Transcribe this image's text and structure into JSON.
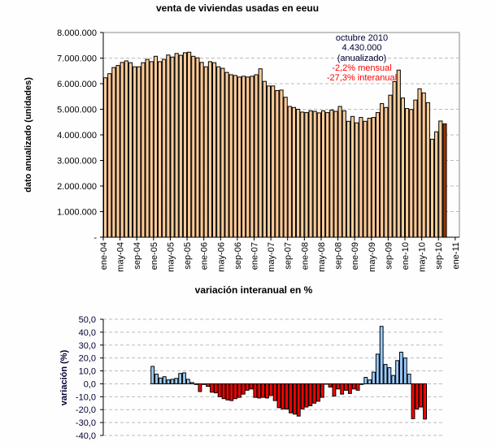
{
  "chart_data": [
    {
      "type": "bar",
      "title": "venta de viviendas usadas en eeuu",
      "ylabel": "dato anualizado (unidades)",
      "xlabel": "",
      "ylim": [
        0,
        8000000
      ],
      "yticks": [
        "-",
        "1.000.000",
        "2.000.000",
        "3.000.000",
        "4.000.000",
        "5.000.000",
        "6.000.000",
        "7.000.000",
        "8.000.000"
      ],
      "xticks": [
        "ene-04",
        "may-04",
        "sep-04",
        "ene-05",
        "may-05",
        "sep-05",
        "ene-06",
        "may-06",
        "sep-06",
        "ene-07",
        "may-07",
        "sep-07",
        "ene-08",
        "may-08",
        "sep-08",
        "ene-09",
        "may-09",
        "sep-09",
        "ene-10",
        "may-10",
        "sep-10",
        "ene-11"
      ],
      "x_start": "ene-04",
      "x_end": "oct-10",
      "grid": true,
      "bar_color": "#ffcc99",
      "highlight_color": "#993300",
      "values": [
        6230000,
        6390000,
        6630000,
        6710000,
        6830000,
        6890000,
        6820000,
        6660000,
        6660000,
        6820000,
        6950000,
        6860000,
        7070000,
        6860000,
        6950000,
        7120000,
        7040000,
        7180000,
        7110000,
        7210000,
        7230000,
        7070000,
        7010000,
        6830000,
        6660000,
        6860000,
        6820000,
        6660000,
        6600000,
        6440000,
        6350000,
        6320000,
        6260000,
        6290000,
        6260000,
        6290000,
        6350000,
        6580000,
        6090000,
        5910000,
        5910000,
        5730000,
        5750000,
        5470000,
        5110000,
        5070000,
        5000000,
        4890000,
        4870000,
        4940000,
        4920000,
        4860000,
        4940000,
        4870000,
        4970000,
        4920000,
        5110000,
        4940000,
        4530000,
        4720000,
        4470000,
        4680000,
        4530000,
        4650000,
        4680000,
        4870000,
        5220000,
        5070000,
        5550000,
        6080000,
        6530000,
        5440000,
        5030000,
        4990000,
        5360000,
        5800000,
        5640000,
        5260000,
        3830000,
        4120000,
        4540000,
        4430000
      ],
      "annotation": {
        "lines": [
          "octubre 2010",
          "4.430.000",
          "(anualizado)"
        ],
        "red_lines": [
          "-2,2% mensual",
          "-27,3% interanual"
        ]
      }
    },
    {
      "type": "bar",
      "title": "variación interanual en %",
      "ylabel": "variación (%)",
      "xlabel": "",
      "ylim": [
        -40,
        50
      ],
      "yticks": [
        "-40,0",
        "-30,0",
        "-20,0",
        "-10,0",
        "0,0",
        "10,0",
        "20,0",
        "30,0",
        "40,0",
        "50,0"
      ],
      "x_start": "ene-04",
      "grid": true,
      "positive_color": "#99ccff",
      "negative_color": "#ff0000",
      "values": [
        null,
        null,
        null,
        null,
        null,
        null,
        null,
        null,
        null,
        null,
        null,
        null,
        13.5,
        7.5,
        4.5,
        5.5,
        3.0,
        3.5,
        4.2,
        8.0,
        8.5,
        3.5,
        1.0,
        -0.5,
        -6.0,
        -0.5,
        -2.0,
        -6.5,
        -7.0,
        -10.0,
        -11.5,
        -12.5,
        -13.0,
        -11.5,
        -10.5,
        -8.0,
        -5.0,
        -4.0,
        -10.5,
        -11.0,
        -10.5,
        -11.0,
        -9.0,
        -13.0,
        -18.5,
        -19.5,
        -19.5,
        -22.5,
        -23.5,
        -25.0,
        -19.5,
        -18.0,
        -17.0,
        -15.0,
        -13.5,
        -10.5,
        -0.3,
        -2.5,
        -9.5,
        -4.0,
        -8.0,
        -5.0,
        -7.5,
        -4.0,
        -5.0,
        -0.5,
        5.0,
        3.0,
        9.0,
        23.0,
        44.5,
        15.0,
        12.5,
        6.5,
        18.0,
        24.5,
        20.0,
        7.5,
        -27.0,
        -19.5,
        -18.0,
        -27.3
      ]
    }
  ]
}
